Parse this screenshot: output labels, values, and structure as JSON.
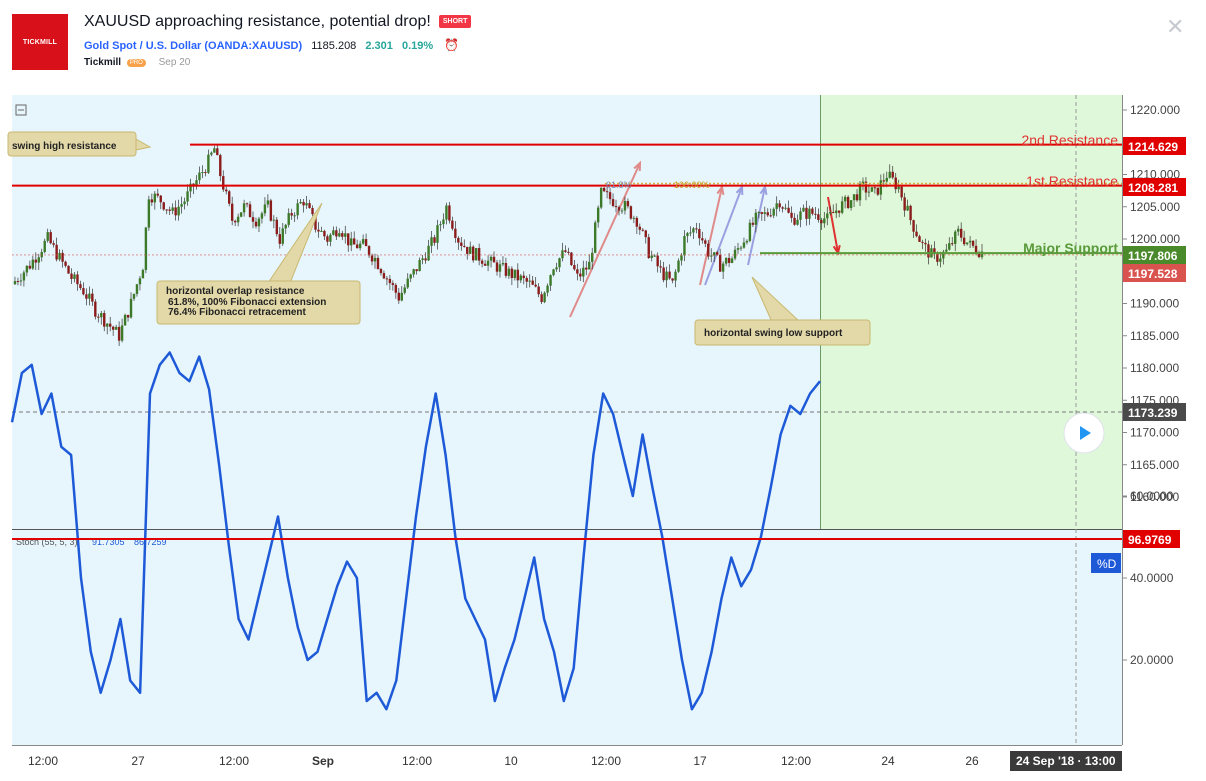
{
  "header": {
    "logo_text": "TICKMILL",
    "title": "XAUUSD approaching resistance, potential drop!",
    "badge": "SHORT",
    "symbol_full": "Gold Spot / U.S. Dollar (OANDA:XAUUSD)",
    "price": "1185.208",
    "change": "2.301",
    "change_pct": "0.19%",
    "author": "Tickmill",
    "author_badge": "PRO",
    "date": "Sep 20",
    "close_icon": "close-icon",
    "clock_icon": "alarm-clock-icon",
    "colors": {
      "brand": "#d8101a",
      "link": "#2962ff",
      "up": "#26a69a",
      "badge": "#f23645"
    }
  },
  "chart_data": [
    {
      "type": "candlestick",
      "title": "",
      "ylim": [
        1155,
        1222
      ],
      "y_ticks": [
        "1220.000",
        "1215.000",
        "1210.000",
        "1205.000",
        "1200.000",
        "1195.000",
        "1190.000",
        "1185.000",
        "1180.000",
        "1175.000",
        "1170.000",
        "1165.000",
        "1160.000"
      ],
      "x_ticks": [
        "12:00",
        "27",
        "12:00",
        "Sep",
        "12:00",
        "10",
        "12:00",
        "17",
        "12:00",
        "24",
        "26"
      ],
      "cursor_time": "24 Sep '18 · 13:00",
      "price_labels": [
        {
          "value": "1214.629",
          "color": "#e00000"
        },
        {
          "value": "1208.281",
          "color": "#e00000"
        },
        {
          "value": "1197.806",
          "color": "#4a8a2a"
        },
        {
          "value": "1197.528",
          "color": "#d9534f"
        },
        {
          "value": "1173.239",
          "color": "#4a4a4a"
        }
      ],
      "levels": [
        {
          "name": "2nd Resistance",
          "value": 1214.629,
          "color": "#e00000"
        },
        {
          "name": "1st Resistance",
          "value": 1208.281,
          "color": "#e00000"
        },
        {
          "name": "Major Support",
          "value": 1197.806,
          "color": "#5a9a3a"
        }
      ],
      "annotations": [
        "swing high resistance",
        "horizontal overlap resistance",
        "61.8%, 100% Fibonacci extension",
        "76.4% Fibonacci retracement",
        "horizontal swing low support",
        "61.8%",
        "100.00%"
      ],
      "close_path": [
        [
          0,
          1193
        ],
        [
          3,
          1196
        ],
        [
          6,
          1200
        ],
        [
          8,
          1197
        ],
        [
          10,
          1194
        ],
        [
          12,
          1192
        ],
        [
          14,
          1189
        ],
        [
          16,
          1187
        ],
        [
          18,
          1185
        ],
        [
          20,
          1190
        ],
        [
          22,
          1196
        ],
        [
          23,
          1207
        ],
        [
          25,
          1206
        ],
        [
          27,
          1204
        ],
        [
          29,
          1206
        ],
        [
          31,
          1209
        ],
        [
          33,
          1212
        ],
        [
          34,
          1214
        ],
        [
          35,
          1210
        ],
        [
          37,
          1203
        ],
        [
          39,
          1205
        ],
        [
          41,
          1203
        ],
        [
          43,
          1205
        ],
        [
          45,
          1200
        ],
        [
          47,
          1204
        ],
        [
          49,
          1206
        ],
        [
          51,
          1202
        ],
        [
          53,
          1200
        ],
        [
          55,
          1202
        ],
        [
          57,
          1199
        ],
        [
          59,
          1199
        ],
        [
          61,
          1197
        ],
        [
          63,
          1194
        ],
        [
          65,
          1191
        ],
        [
          67,
          1194
        ],
        [
          69,
          1197
        ],
        [
          71,
          1200
        ],
        [
          73,
          1205
        ],
        [
          75,
          1200
        ],
        [
          77,
          1198
        ],
        [
          79,
          1197
        ],
        [
          81,
          1196
        ],
        [
          83,
          1195
        ],
        [
          85,
          1194
        ],
        [
          87,
          1193
        ],
        [
          89,
          1191
        ],
        [
          91,
          1196
        ],
        [
          93,
          1198
        ],
        [
          95,
          1194
        ],
        [
          97,
          1196
        ],
        [
          99,
          1207
        ],
        [
          101,
          1206
        ],
        [
          103,
          1205
        ],
        [
          105,
          1203
        ],
        [
          107,
          1198
        ],
        [
          109,
          1195
        ],
        [
          111,
          1193
        ],
        [
          113,
          1200
        ],
        [
          115,
          1202
        ],
        [
          117,
          1198
        ],
        [
          119,
          1196
        ],
        [
          121,
          1197
        ],
        [
          123,
          1200
        ],
        [
          125,
          1203
        ],
        [
          127,
          1204
        ],
        [
          129,
          1206
        ],
        [
          131,
          1203
        ],
        [
          133,
          1204
        ],
        [
          135,
          1204
        ],
        [
          137,
          1203
        ],
        [
          139,
          1205
        ],
        [
          141,
          1206
        ],
        [
          143,
          1208
        ],
        [
          145,
          1207
        ],
        [
          147,
          1210
        ],
        [
          149,
          1208
        ],
        [
          151,
          1203
        ],
        [
          153,
          1199
        ],
        [
          155,
          1197
        ],
        [
          157,
          1198
        ],
        [
          159,
          1201
        ],
        [
          161,
          1199
        ],
        [
          163,
          1198
        ]
      ]
    },
    {
      "type": "line",
      "title": "",
      "indicator": "Stoch (55, 5, 3)",
      "k_value": "91.7305",
      "d_value": "86.7259",
      "last_label": "96.9769",
      "legend_badge": "%D",
      "ylim": [
        0,
        100
      ],
      "y_ticks": [
        "80.0000",
        "60.0000",
        "40.0000",
        "20.0000"
      ],
      "values": [
        78,
        90,
        92,
        80,
        85,
        72,
        70,
        40,
        22,
        12,
        20,
        30,
        15,
        12,
        85,
        92,
        95,
        90,
        88,
        94,
        86,
        68,
        48,
        30,
        25,
        35,
        45,
        55,
        40,
        28,
        20,
        22,
        30,
        38,
        44,
        40,
        10,
        12,
        8,
        15,
        35,
        55,
        72,
        85,
        70,
        50,
        35,
        30,
        25,
        10,
        18,
        25,
        35,
        45,
        30,
        22,
        10,
        18,
        45,
        70,
        85,
        80,
        70,
        60,
        75,
        62,
        50,
        35,
        20,
        8,
        12,
        22,
        35,
        45,
        38,
        42,
        50,
        62,
        75,
        82,
        80,
        85,
        88
      ]
    }
  ]
}
